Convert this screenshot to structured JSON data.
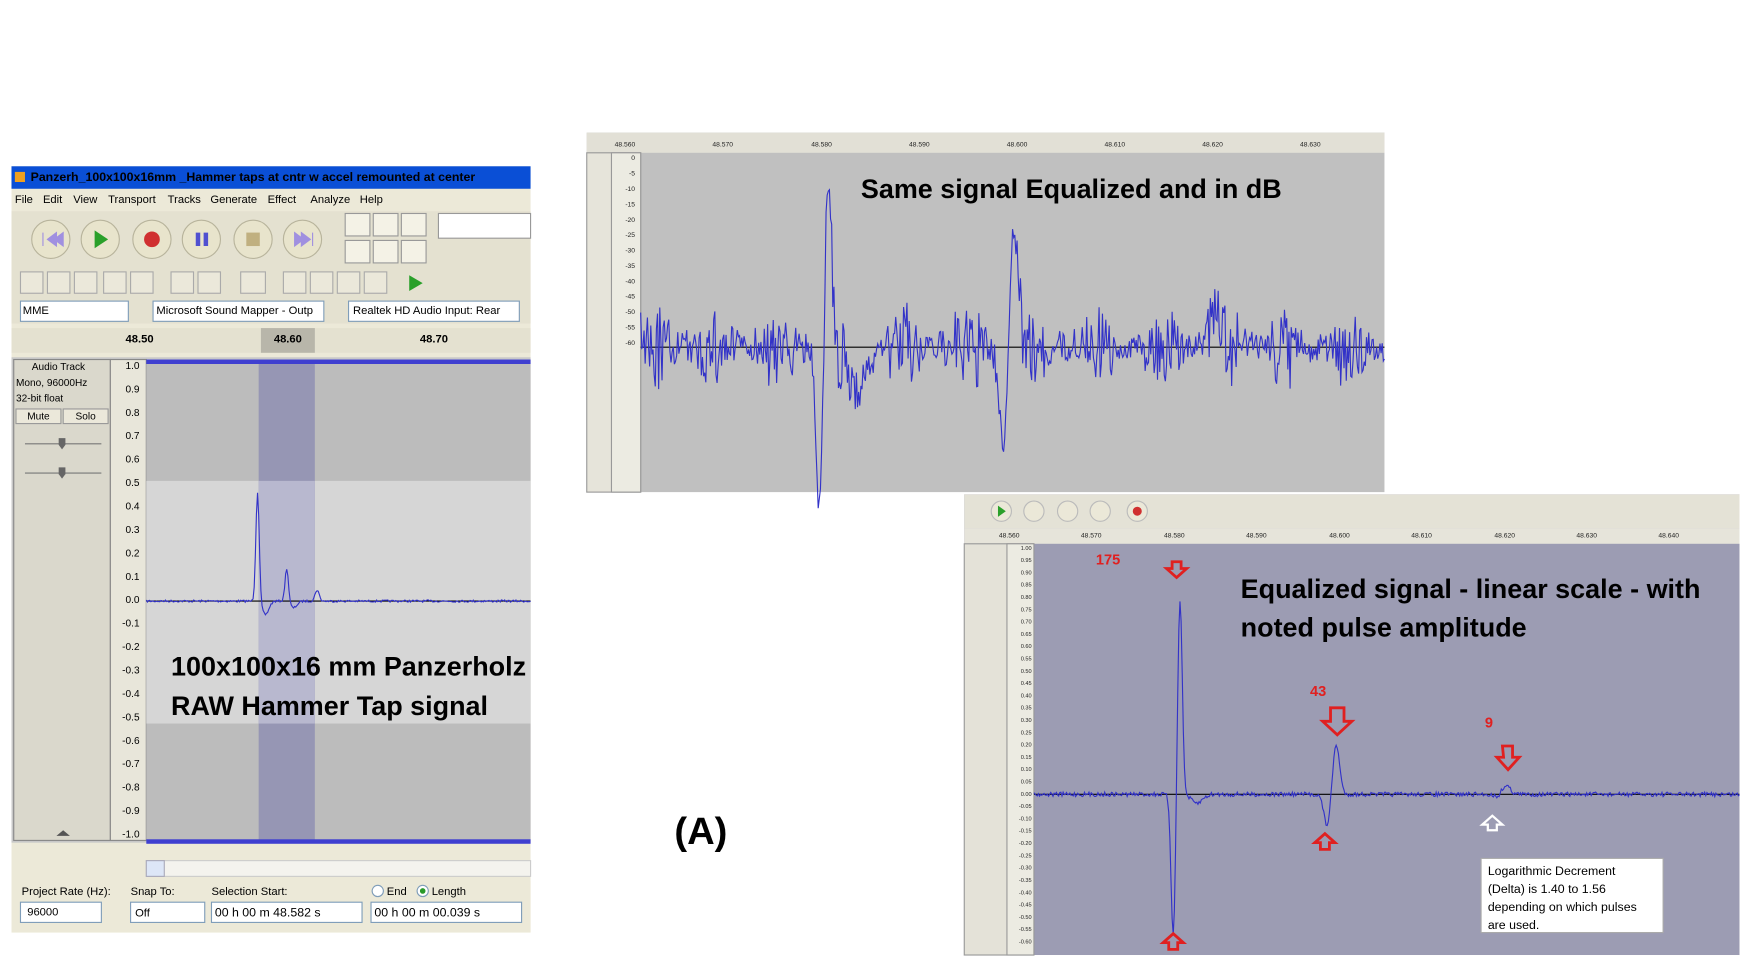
{
  "left_window": {
    "title": "Panzerh_100x100x16mm _Hammer taps at cntr w accel remounted at center",
    "menu": [
      "File",
      "Edit",
      "View",
      "Transport",
      "Tracks",
      "Generate",
      "Effect",
      "Analyze",
      "Help"
    ],
    "devices": [
      "MME",
      "Microsoft Sound Mapper - Outp",
      "Realtek HD Audio Input: Rear"
    ],
    "ruler": [
      "48.50",
      "48.60",
      "48.70"
    ],
    "track": {
      "name": "Audio Track",
      "format": "Mono, 96000Hz",
      "sample": "32-bit float",
      "buttons": [
        "Mute",
        "Solo"
      ]
    },
    "y_axis": [
      "1.0",
      "0.9",
      "0.8",
      "0.7",
      "0.6",
      "0.5",
      "0.4",
      "0.3",
      "0.2",
      "0.1",
      "0.0",
      "-0.1",
      "-0.2",
      "-0.3",
      "-0.4",
      "-0.5",
      "-0.6",
      "-0.7",
      "-0.8",
      "-0.9",
      "-1.0"
    ],
    "annotation": [
      "100x100x16 mm Panzerholz",
      "RAW Hammer Tap signal"
    ],
    "status": {
      "rate_label": "Project Rate (Hz):",
      "rate": "96000",
      "snap_label": "Snap To:",
      "snap": "Off",
      "selection_label": "Selection Start:",
      "selection_start": "00 h 00 m 48.582 s",
      "end": "End",
      "length": "Length",
      "selection_length": "00 h 00 m 00.039 s"
    }
  },
  "middle_panel": {
    "ruler": [
      "48.560",
      "48.570",
      "48.580",
      "48.590",
      "48.600",
      "48.610",
      "48.620",
      "48.630"
    ],
    "y_axis": [
      "0",
      "-5",
      "-10",
      "-15",
      "-20",
      "-25",
      "-30",
      "-35",
      "-40",
      "-45",
      "-50",
      "-55",
      "-60"
    ],
    "annotation": "Same signal Equalized and in dB"
  },
  "right_panel": {
    "ruler": [
      "48.560",
      "48.570",
      "48.580",
      "48.590",
      "48.600",
      "48.610",
      "48.620",
      "48.630",
      "48.640"
    ],
    "y_axis": [
      "1.00",
      "0.95",
      "0.90",
      "0.85",
      "0.80",
      "0.75",
      "0.70",
      "0.65",
      "0.60",
      "0.55",
      "0.50",
      "0.45",
      "0.40",
      "0.35",
      "0.30",
      "0.25",
      "0.20",
      "0.15",
      "0.10",
      "0.05",
      "0.00",
      "-0.05",
      "-0.10",
      "-0.15",
      "-0.20",
      "-0.25",
      "-0.30",
      "-0.35",
      "-0.40",
      "-0.45",
      "-0.50",
      "-0.55",
      "-0.60"
    ],
    "annotation": [
      "Equalized signal - linear scale - with",
      "noted pulse amplitude"
    ],
    "pulse_labels": [
      "175",
      "43",
      "9"
    ],
    "note": [
      "Logarithmic Decrement",
      "(Delta) is 1.40 to 1.56",
      "depending on which pulses",
      "are used."
    ]
  },
  "figure_label": "(A)"
}
